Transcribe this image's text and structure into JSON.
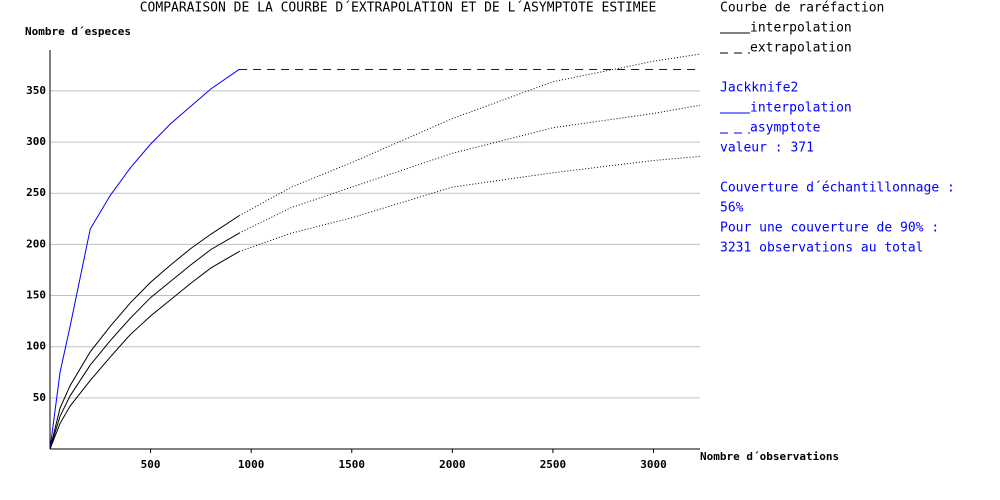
{
  "chart_data": {
    "type": "line",
    "title": "COMPARAISON DE LA COURBE D´EXTRAPOLATION ET DE L´ASYMPTOTE ESTIMEE",
    "y_label": "Nombre d´especes",
    "x_label": "Nombre d´observations",
    "x": [
      0,
      50,
      100,
      200,
      300,
      400,
      500,
      600,
      700,
      800,
      940,
      1200,
      1500,
      2000,
      2500,
      3000,
      3231
    ],
    "series": [
      {
        "color": "#0000ff",
        "style": "solid",
        "values": [
          0,
          75,
          120,
          215,
          248,
          275,
          298,
          318,
          335,
          352,
          371,
          null,
          null,
          null,
          null,
          null,
          null
        ]
      },
      {
        "color": "#0000ff",
        "style": "dashed",
        "values": [
          null,
          null,
          null,
          null,
          null,
          null,
          null,
          null,
          null,
          null,
          371,
          371,
          371,
          371,
          371,
          371,
          371
        ]
      },
      {
        "color": "#000000",
        "style": "solid",
        "values": [
          0,
          40,
          62,
          95,
          120,
          143,
          163,
          180,
          196,
          210,
          228,
          null,
          null,
          null,
          null,
          null,
          null
        ]
      },
      {
        "color": "#000000",
        "style": "solid",
        "values": [
          0,
          32,
          52,
          82,
          106,
          128,
          148,
          164,
          180,
          195,
          211,
          null,
          null,
          null,
          null,
          null,
          null
        ]
      },
      {
        "color": "#000000",
        "style": "solid",
        "values": [
          0,
          25,
          42,
          67,
          90,
          112,
          130,
          146,
          162,
          177,
          193,
          null,
          null,
          null,
          null,
          null,
          null
        ]
      },
      {
        "color": "#000000",
        "style": "dotted",
        "values": [
          null,
          null,
          null,
          null,
          null,
          null,
          null,
          null,
          null,
          null,
          228,
          256,
          280,
          323,
          359,
          379,
          386
        ]
      },
      {
        "color": "#000000",
        "style": "dotted",
        "values": [
          null,
          null,
          null,
          null,
          null,
          null,
          null,
          null,
          null,
          null,
          211,
          236,
          256,
          289,
          314,
          328,
          336
        ]
      },
      {
        "color": "#000000",
        "style": "dotted",
        "values": [
          null,
          null,
          null,
          null,
          null,
          null,
          null,
          null,
          null,
          null,
          193,
          211,
          226,
          256,
          270,
          282,
          286
        ]
      }
    ],
    "xlim": [
      0,
      3231
    ],
    "ylim": [
      0,
      390
    ],
    "xticks": [
      500,
      1000,
      1500,
      2000,
      2500,
      3000
    ],
    "yticks": [
      50,
      100,
      150,
      200,
      250,
      300,
      350
    ],
    "grid": true,
    "grid_color": "#c0c0c0",
    "legend": [
      {
        "title": "Courbe de raréfaction",
        "color": "#000000",
        "entries": [
          {
            "label": "interpolation",
            "style": "solid"
          },
          {
            "label": "extrapolation",
            "style": "dashed"
          }
        ]
      },
      {
        "title": "Jackknife2",
        "color": "#0000ff",
        "entries": [
          {
            "label": "interpolation",
            "style": "solid"
          },
          {
            "label": "asymptote",
            "style": "dashed"
          }
        ],
        "note": "valeur : 371"
      }
    ],
    "notes": [
      "Couverture d´échantillonnage :",
      "56%",
      "Pour une couverture de 90% :",
      "3231 observations au total"
    ],
    "notes_color": "#0000ff"
  }
}
